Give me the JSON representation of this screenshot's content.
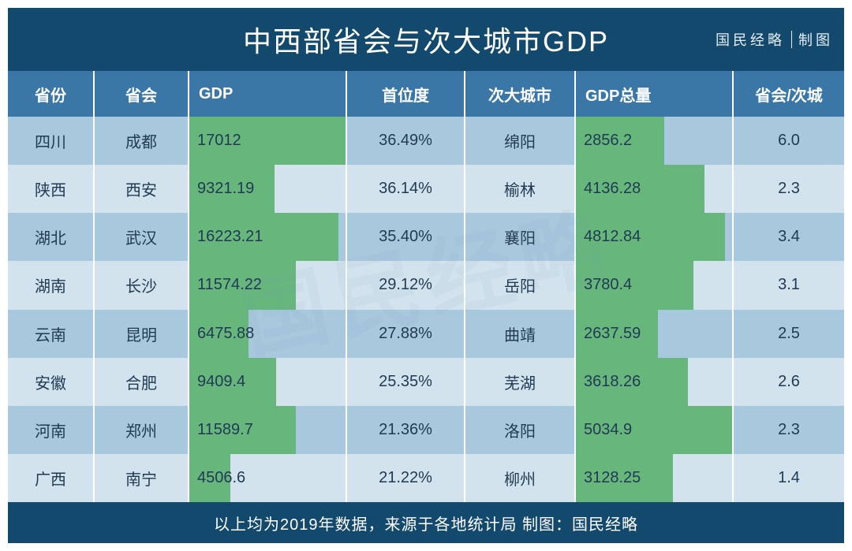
{
  "title": "中西部省会与次大城市GDP",
  "credit_left": "国民经略",
  "credit_right": "制图",
  "footer": "以上均为2019年数据，来源于各地统计局 制图：国民经略",
  "watermark": "国民经略",
  "colors": {
    "header_bg": "#14496e",
    "subheader_bg": "#3a77a6",
    "row_odd": "#a8c8de",
    "row_even": "#d3e3ee",
    "bar": "#67b77d",
    "text_dark": "#1f3a52",
    "border": "#ffffff"
  },
  "columns": [
    {
      "key": "province",
      "label": "省份",
      "align": "center"
    },
    {
      "key": "capital",
      "label": "省会",
      "align": "center"
    },
    {
      "key": "gdp",
      "label": "GDP",
      "align": "left",
      "bar": true,
      "bar_max": 17012
    },
    {
      "key": "primacy",
      "label": "首位度",
      "align": "center"
    },
    {
      "key": "second_city",
      "label": "次大城市",
      "align": "center"
    },
    {
      "key": "gdp_total",
      "label": "GDP总量",
      "align": "left",
      "bar": true,
      "bar_max": 5034.9
    },
    {
      "key": "ratio",
      "label": "省会/次城",
      "align": "center"
    }
  ],
  "rows": [
    {
      "province": "四川",
      "capital": "成都",
      "gdp": "17012",
      "gdp_val": 17012,
      "primacy": "36.49%",
      "second_city": "绵阳",
      "gdp_total": "2856.2",
      "gdp_total_val": 2856.2,
      "ratio": "6.0"
    },
    {
      "province": "陕西",
      "capital": "西安",
      "gdp": "9321.19",
      "gdp_val": 9321.19,
      "primacy": "36.14%",
      "second_city": "榆林",
      "gdp_total": "4136.28",
      "gdp_total_val": 4136.28,
      "ratio": "2.3"
    },
    {
      "province": "湖北",
      "capital": "武汉",
      "gdp": "16223.21",
      "gdp_val": 16223.21,
      "primacy": "35.40%",
      "second_city": "襄阳",
      "gdp_total": "4812.84",
      "gdp_total_val": 4812.84,
      "ratio": "3.4"
    },
    {
      "province": "湖南",
      "capital": "长沙",
      "gdp": "11574.22",
      "gdp_val": 11574.22,
      "primacy": "29.12%",
      "second_city": "岳阳",
      "gdp_total": "3780.4",
      "gdp_total_val": 3780.4,
      "ratio": "3.1"
    },
    {
      "province": "云南",
      "capital": "昆明",
      "gdp": "6475.88",
      "gdp_val": 6475.88,
      "primacy": "27.88%",
      "second_city": "曲靖",
      "gdp_total": "2637.59",
      "gdp_total_val": 2637.59,
      "ratio": "2.5"
    },
    {
      "province": "安徽",
      "capital": "合肥",
      "gdp": "9409.4",
      "gdp_val": 9409.4,
      "primacy": "25.35%",
      "second_city": "芜湖",
      "gdp_total": "3618.26",
      "gdp_total_val": 3618.26,
      "ratio": "2.6"
    },
    {
      "province": "河南",
      "capital": "郑州",
      "gdp": "11589.7",
      "gdp_val": 11589.7,
      "primacy": "21.36%",
      "second_city": "洛阳",
      "gdp_total": "5034.9",
      "gdp_total_val": 5034.9,
      "ratio": "2.3"
    },
    {
      "province": "广西",
      "capital": "南宁",
      "gdp": "4506.6",
      "gdp_val": 4506.6,
      "primacy": "21.22%",
      "second_city": "柳州",
      "gdp_total": "3128.25",
      "gdp_total_val": 3128.25,
      "ratio": "1.4"
    }
  ]
}
